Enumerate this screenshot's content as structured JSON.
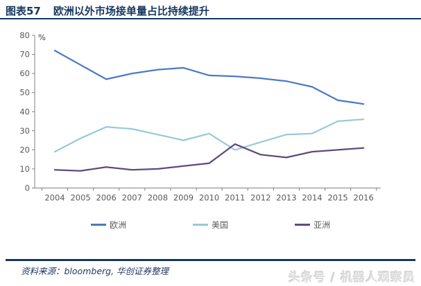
{
  "header": {
    "fig_label": "图表57",
    "title": "欧洲以外市场接单量占比持续提升"
  },
  "chart_data": {
    "type": "line",
    "title": "欧洲以外市场接单量占比持续提升",
    "unit_label": "%",
    "categories": [
      "2004",
      "2005",
      "2006",
      "2007",
      "2008",
      "2009",
      "2010",
      "2011",
      "2012",
      "2013",
      "2014",
      "2015",
      "2016"
    ],
    "series": [
      {
        "name": "欧洲",
        "color": "#4C79C5",
        "values": [
          72,
          64.5,
          57,
          60,
          62,
          63,
          59,
          58.5,
          57.5,
          56,
          53,
          46,
          44
        ]
      },
      {
        "name": "美国",
        "color": "#97CAD9",
        "values": [
          19,
          26,
          32,
          31,
          28,
          25,
          28.5,
          20,
          24,
          28,
          28.5,
          35,
          36
        ]
      },
      {
        "name": "亚洲",
        "color": "#5E4A7D",
        "values": [
          9.5,
          9,
          11,
          9.5,
          10,
          11.5,
          13,
          23,
          17.5,
          16,
          19,
          20,
          21
        ]
      }
    ],
    "ylim": [
      0,
      80
    ],
    "y_ticks": [
      0,
      10,
      20,
      30,
      40,
      50,
      60,
      70,
      80
    ],
    "xlabel": "",
    "ylabel": "%",
    "grid": false,
    "legend_position": "bottom"
  },
  "footer": {
    "source": "资料来源：bloomberg, 华创证券整理"
  },
  "watermark": "头条号 / 机器人观察员",
  "colors": {
    "title": "#17375E",
    "rule": "#17375E",
    "axis_line": "#808080",
    "tick_label": "#595959",
    "watermark": "#DCDCDC"
  }
}
